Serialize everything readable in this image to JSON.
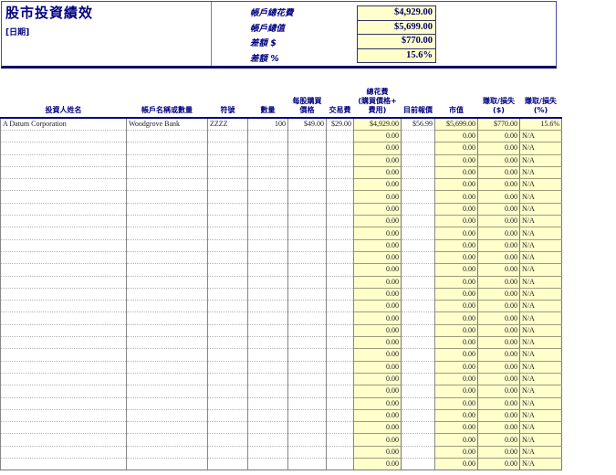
{
  "header": {
    "title": "股市投資績效",
    "date": "[日期]",
    "summary": [
      {
        "label": "帳戶總花費",
        "value": "$4,929.00"
      },
      {
        "label": "帳戶總值",
        "value": "$5,699.00"
      },
      {
        "label": "差額 $",
        "value": "$770.00"
      },
      {
        "label": "差額 %",
        "value": "15.6%"
      }
    ]
  },
  "colors": {
    "accent_navy": "#000080",
    "cell_yellow": "#FFFFCC",
    "header_border": "#000066"
  },
  "table": {
    "columns": [
      "投資人姓名",
      "帳戶名稱或數量",
      "符號",
      "數量",
      "每股購買\n價格",
      "交易費",
      "總花費\n(購買價格+\n費用)",
      "目前報價",
      "市值",
      "賺取/損失\n($)",
      "賺取/損失\n(%)"
    ],
    "first_row": [
      "A Datum Corporation",
      "Woodgrove Bank",
      "ZZZZ",
      "100",
      "$49.00",
      "$29.00",
      "$4,929.00",
      "$56.99",
      "$5,699.00",
      "$770.00",
      "15.6%"
    ],
    "empty_row": [
      "",
      "",
      "",
      "",
      "",
      "",
      "0.00",
      "",
      "0.00",
      "0.00",
      "N/A"
    ],
    "empty_row_count": 28
  }
}
